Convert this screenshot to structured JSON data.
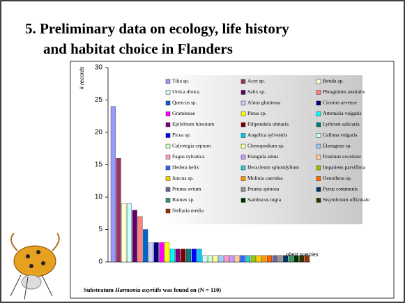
{
  "slide_title": [
    "5. Preliminary data on ecology, life history",
    "and habitat choice in Flanders"
  ],
  "chart_data": {
    "type": "bar",
    "y_label": "# records",
    "x_label": "plant species",
    "footnote": {
      "prefix": "Substratum",
      "species": "Harmonia axyridis",
      "suffix": "was found on (N = 110)"
    },
    "ylim": [
      0,
      30
    ],
    "yticks": [
      0,
      5,
      10,
      15,
      20,
      25,
      30
    ],
    "series": [
      {
        "name": "Tilia sp.",
        "color": "#9999ff",
        "values": [
          24
        ]
      },
      {
        "name": "Acer sp.",
        "color": "#993366",
        "values": [
          16
        ]
      },
      {
        "name": "Betula sp.",
        "color": "#ffffcc",
        "values": [
          9
        ]
      },
      {
        "name": "Urtica dioica",
        "color": "#ccffff",
        "values": [
          9
        ]
      },
      {
        "name": "Salix sp.",
        "color": "#660066",
        "values": [
          8
        ]
      },
      {
        "name": "Phragmites australis",
        "color": "#ff8080",
        "values": [
          7
        ]
      },
      {
        "name": "Quercus sp.",
        "color": "#0066cc",
        "values": [
          5
        ]
      },
      {
        "name": "Alnus glutinosa",
        "color": "#ccccff",
        "values": [
          3
        ]
      },
      {
        "name": "Cirsium arvense",
        "color": "#000080",
        "values": [
          3
        ]
      },
      {
        "name": "Gramineae",
        "color": "#ff00ff",
        "values": [
          3
        ]
      },
      {
        "name": "Pinus sp.",
        "color": "#ffff00",
        "values": [
          3
        ]
      },
      {
        "name": "Artemisia vulgaris",
        "color": "#00ffff",
        "values": [
          2
        ]
      },
      {
        "name": "Epilobium hirsutum",
        "color": "#800080",
        "values": [
          2
        ]
      },
      {
        "name": "Filipendula ulmaria",
        "color": "#800000",
        "values": [
          2
        ]
      },
      {
        "name": "Lythrum salicaria",
        "color": "#008080",
        "values": [
          2
        ]
      },
      {
        "name": "Picea sp.",
        "color": "#0000ff",
        "values": [
          2
        ]
      },
      {
        "name": "Angelica sylvestris",
        "color": "#00ccff",
        "values": [
          2
        ]
      },
      {
        "name": "Calluna vulgaris",
        "color": "#ccffff",
        "values": [
          1
        ]
      },
      {
        "name": "Calystegia sepium",
        "color": "#ccffcc",
        "values": [
          1
        ]
      },
      {
        "name": "Chenopodium sp.",
        "color": "#ffff99",
        "values": [
          1
        ]
      },
      {
        "name": "Elaeagnus sp.",
        "color": "#99ccff",
        "values": [
          1
        ]
      },
      {
        "name": "Fagus sylvatica",
        "color": "#ff99cc",
        "values": [
          1
        ]
      },
      {
        "name": "Frangula alnus",
        "color": "#cc99ff",
        "values": [
          1
        ]
      },
      {
        "name": "Fraxinus excelsior",
        "color": "#ffcc99",
        "values": [
          1
        ]
      },
      {
        "name": "Hedera helix",
        "color": "#3366ff",
        "values": [
          1
        ]
      },
      {
        "name": "Heracleum sphondylium",
        "color": "#33cccc",
        "values": [
          1
        ]
      },
      {
        "name": "Impatiens parviflora",
        "color": "#99cc00",
        "values": [
          1
        ]
      },
      {
        "name": "Juncus sp.",
        "color": "#ffcc00",
        "values": [
          1
        ]
      },
      {
        "name": "Molinia caerulea",
        "color": "#ff9900",
        "values": [
          1
        ]
      },
      {
        "name": "Oenothera sp.",
        "color": "#ff6600",
        "values": [
          1
        ]
      },
      {
        "name": "Prunus avium",
        "color": "#666699",
        "values": [
          1
        ]
      },
      {
        "name": "Prunus spinosa",
        "color": "#969696",
        "values": [
          1
        ]
      },
      {
        "name": "Pyrus communis",
        "color": "#003366",
        "values": [
          1
        ]
      },
      {
        "name": "Rumex sp.",
        "color": "#339966",
        "values": [
          1
        ]
      },
      {
        "name": "Sambucus nigra",
        "color": "#003300",
        "values": [
          1
        ]
      },
      {
        "name": "Sisymbrium officinale",
        "color": "#333300",
        "values": [
          1
        ]
      },
      {
        "name": "Stellaria media",
        "color": "#993300",
        "values": [
          1
        ]
      }
    ]
  }
}
